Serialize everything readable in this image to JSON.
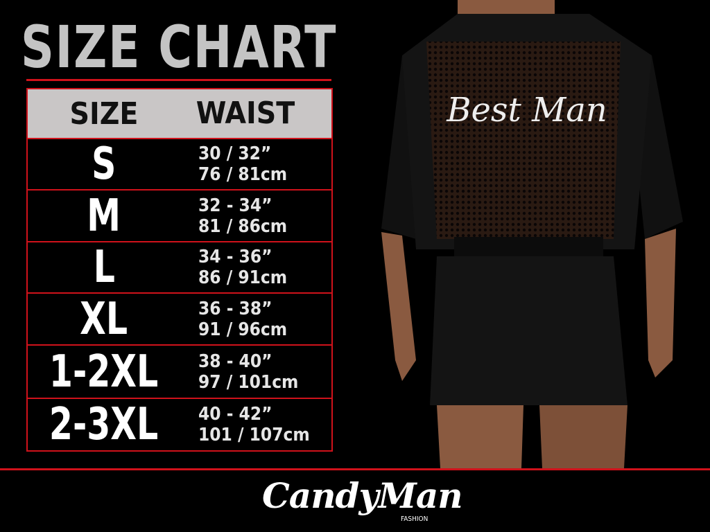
{
  "title": "SIZE CHART",
  "table": {
    "headers": {
      "size": "SIZE",
      "waist": "WAIST"
    },
    "rows": [
      {
        "size": "S",
        "in": "30 / 32”",
        "cm": "76 / 81cm"
      },
      {
        "size": "M",
        "in": "32 - 34”",
        "cm": "81 / 86cm"
      },
      {
        "size": "L",
        "in": "34 - 36”",
        "cm": "86 / 91cm"
      },
      {
        "size": "XL",
        "in": "36 - 38”",
        "cm": "91 / 96cm"
      },
      {
        "size": "1-2XL",
        "in": "38 - 40”",
        "cm": "97 / 101cm"
      },
      {
        "size": "2-3XL",
        "in": "40 - 42”",
        "cm": "101 / 107cm"
      }
    ]
  },
  "photo": {
    "robe_text": "Best Man"
  },
  "logo": {
    "name": "CandyMan",
    "sub": "FASHION"
  },
  "colors": {
    "accent": "#d0121b",
    "header_bg": "#c9c6c6",
    "title": "#c4c4c4"
  }
}
